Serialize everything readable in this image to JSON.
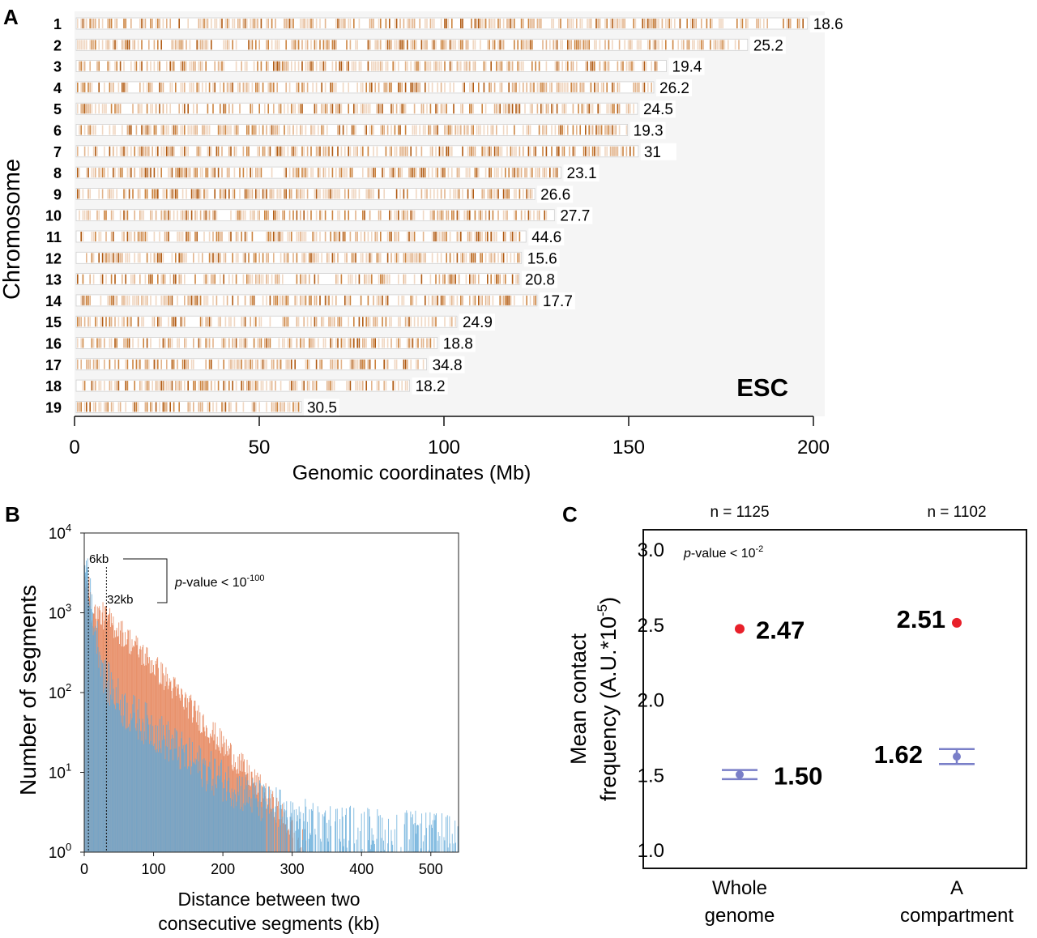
{
  "chart_data": [
    {
      "panel": "A",
      "type": "heatmap",
      "ylabel": "Chromosome",
      "xlabel": "Genomic coordinates (Mb)",
      "xlim": [
        0,
        200
      ],
      "xticks": [
        "0",
        "50",
        "100",
        "150",
        "200"
      ],
      "annotation": "ESC",
      "units_note": "chromosome length in Mb; label value at right of each track",
      "chromosomes": [
        {
          "name": "1",
          "length_mb": 198.4,
          "value": "18.6"
        },
        {
          "name": "2",
          "length_mb": 182.2,
          "value": "25.2"
        },
        {
          "name": "3",
          "length_mb": 160.2,
          "value": "19.4"
        },
        {
          "name": "4",
          "length_mb": 156.8,
          "value": "26.2"
        },
        {
          "name": "5",
          "length_mb": 152.4,
          "value": "24.5"
        },
        {
          "name": "6",
          "length_mb": 149.7,
          "value": "19.3"
        },
        {
          "name": "7",
          "length_mb": 152.6,
          "value": "31"
        },
        {
          "name": "8",
          "length_mb": 131.7,
          "value": "23.1"
        },
        {
          "name": "9",
          "length_mb": 124.6,
          "value": "26.6"
        },
        {
          "name": "10",
          "length_mb": 129.9,
          "value": "27.7"
        },
        {
          "name": "11",
          "length_mb": 122.2,
          "value": "44.6"
        },
        {
          "name": "12",
          "length_mb": 121.0,
          "value": "15.6"
        },
        {
          "name": "13",
          "length_mb": 120.4,
          "value": "20.8"
        },
        {
          "name": "14",
          "length_mb": 125.2,
          "value": "17.7"
        },
        {
          "name": "15",
          "length_mb": 103.5,
          "value": "24.9"
        },
        {
          "name": "16",
          "length_mb": 98.2,
          "value": "18.8"
        },
        {
          "name": "17",
          "length_mb": 95.3,
          "value": "34.8"
        },
        {
          "name": "18",
          "length_mb": 90.7,
          "value": "18.2"
        },
        {
          "name": "19",
          "length_mb": 61.4,
          "value": "30.5"
        }
      ]
    },
    {
      "panel": "B",
      "type": "bar",
      "xlabel": "Distance between two consecutive segments (kb)",
      "ylabel": "Number of segments",
      "xlim": [
        0,
        540
      ],
      "ylim": [
        1,
        10000
      ],
      "yscale": "log",
      "xticks": [
        "0",
        "100",
        "200",
        "300",
        "400",
        "500"
      ],
      "yticks": [
        {
          "base": "10",
          "exp": "0"
        },
        {
          "base": "10",
          "exp": "1"
        },
        {
          "base": "10",
          "exp": "2"
        },
        {
          "base": "10",
          "exp": "3"
        },
        {
          "base": "10",
          "exp": "4"
        }
      ],
      "annotations": {
        "marker1": "6kb",
        "marker2": "32kb",
        "marker1_x": 6,
        "marker2_x": 32,
        "pvalue_prefix": "p",
        "pvalue_text": "-value < 10",
        "pvalue_exp": "-100"
      },
      "series": [
        {
          "color": "#e8906a",
          "profile": [
            [
              5,
              3000
            ],
            [
              10,
              1000
            ],
            [
              30,
              900
            ],
            [
              60,
              500
            ],
            [
              100,
              220
            ],
            [
              150,
              70
            ],
            [
              200,
              22
            ],
            [
              250,
              7
            ],
            [
              290,
              2.5
            ],
            [
              320,
              1.2
            ]
          ]
        },
        {
          "color": "#5fa8d8",
          "profile": [
            [
              5,
              4000
            ],
            [
              10,
              1200
            ],
            [
              30,
              150
            ],
            [
              60,
              60
            ],
            [
              100,
              35
            ],
            [
              150,
              15
            ],
            [
              200,
              8
            ],
            [
              260,
              4
            ],
            [
              320,
              2.5
            ],
            [
              400,
              2
            ],
            [
              540,
              1.6
            ]
          ]
        }
      ]
    },
    {
      "panel": "C",
      "type": "scatter",
      "ylabel_line1": "Mean contact",
      "ylabel_line2_prefix": "frequency (A.U.*10",
      "ylabel_line2_exp": "-5",
      "ylabel_line2_suffix": ")",
      "ylim": [
        0.9,
        3.1
      ],
      "yticks": [
        "1.0",
        "1.5",
        "2.0",
        "2.5",
        "3.0"
      ],
      "annotation_prefix": "p",
      "annotation_text": "-value < 10",
      "annotation_exp": "-2",
      "categories": [
        {
          "label_line1": "Whole",
          "label_line2": "genome",
          "n": "n = 1125",
          "red_value": 2.47,
          "red_label": "2.47",
          "blue_value": 1.5,
          "blue_err": 0.03,
          "blue_label": "1.50"
        },
        {
          "label_line1": "A",
          "label_line2": "compartment",
          "n": "n = 1102",
          "red_value": 2.51,
          "red_label": "2.51",
          "blue_value": 1.62,
          "blue_err": 0.05,
          "blue_label": "1.62"
        }
      ],
      "colors": {
        "red": "#e8202a",
        "blue": "#7a7fc8"
      }
    }
  ],
  "panels": {
    "a": "A",
    "b": "B",
    "c": "C"
  }
}
